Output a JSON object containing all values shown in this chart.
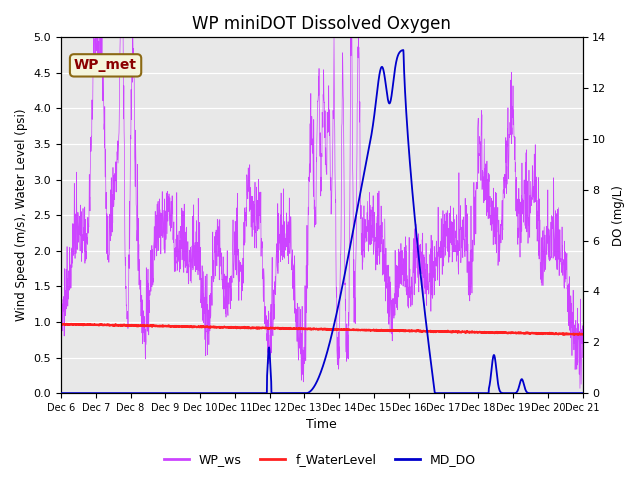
{
  "title": "WP miniDOT Dissolved Oxygen",
  "ylabel_left": "Wind Speed (m/s), Water Level (psi)",
  "ylabel_right": "DO (mg/L)",
  "xlabel": "Time",
  "ylim_left": [
    0.0,
    5.0
  ],
  "ylim_right": [
    0,
    14
  ],
  "yticks_left": [
    0.0,
    0.5,
    1.0,
    1.5,
    2.0,
    2.5,
    3.0,
    3.5,
    4.0,
    4.5,
    5.0
  ],
  "yticks_right": [
    0,
    2,
    4,
    6,
    8,
    10,
    12,
    14
  ],
  "xtick_labels": [
    "Dec 6",
    "Dec 7",
    "Dec 8",
    "Dec 9",
    "Dec 10",
    "Dec 11",
    "Dec 12",
    "Dec 13",
    "Dec 14",
    "Dec 15",
    "Dec 16",
    "Dec 17",
    "Dec 18",
    "Dec 19",
    "Dec 20",
    "Dec 21"
  ],
  "background_color": "#e8e8e8",
  "title_fontsize": 12,
  "annotation_text": "WP_met",
  "annotation_color": "#8b0000",
  "annotation_bg": "#f5f5dc",
  "annotation_edge": "#8b6914",
  "ws_color": "#cc44ff",
  "wl_color": "#ff2020",
  "do_color": "#0000cc",
  "legend_labels": [
    "WP_ws",
    "f_WaterLevel",
    "MD_DO"
  ],
  "legend_colors": [
    "#cc44ff",
    "#ff2020",
    "#0000cc"
  ]
}
